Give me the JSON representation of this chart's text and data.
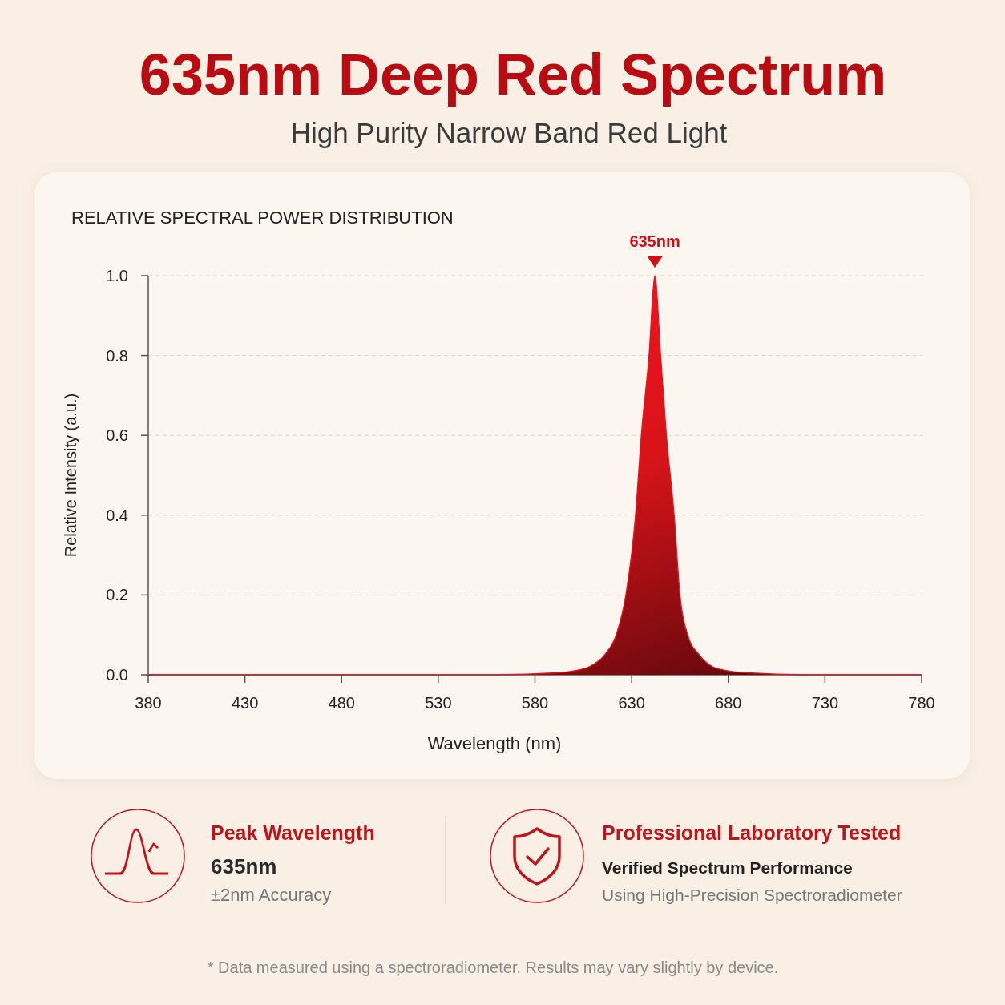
{
  "chart_data": {
    "type": "area",
    "title": "635nm Deep Red Spectrum",
    "subtitle": "High Purity Narrow Band Red Light",
    "xlabel": "Wavelength (nm)",
    "ylabel": "Relative Intensity (a.u.)",
    "x": [
      380,
      560,
      591,
      600,
      608,
      616,
      622,
      627,
      632,
      635,
      639,
      642,
      645,
      648,
      652,
      655,
      659,
      665,
      672,
      680,
      690,
      720,
      780
    ],
    "series": [
      {
        "color": "#e3141b",
        "values": [
          0,
          0,
          0.005,
          0.01,
          0.02,
          0.05,
          0.1,
          0.2,
          0.4,
          0.6,
          0.8,
          1,
          0.8,
          0.6,
          0.4,
          0.2,
          0.1,
          0.05,
          0.02,
          0.01,
          0.005,
          0,
          0
        ]
      }
    ],
    "xlim": [
      380,
      780
    ],
    "ylim": [
      0,
      1
    ],
    "xticks": [
      380,
      430,
      480,
      530,
      580,
      630,
      680,
      730,
      780
    ],
    "yticks": [
      {
        "value": 0,
        "label": "0.0"
      },
      0.2,
      0.4,
      0.6,
      0.8,
      {
        "value": 1,
        "label": "1.0"
      }
    ],
    "grid": "y",
    "annotations": [
      "RELATIVE SPECTRAL POWER DISTRIBUTION",
      {
        "text": "635nm",
        "x": 642,
        "y": 1
      },
      "Peak Wavelength",
      "635nm",
      "±2nm Accuracy",
      "Professional Laboratory Tested",
      "Verified Spectrum Performance",
      "Using High-Precision Spectroradiometer",
      "* Data measured using a spectroradiometer. Results may vary slightly by device."
    ]
  }
}
